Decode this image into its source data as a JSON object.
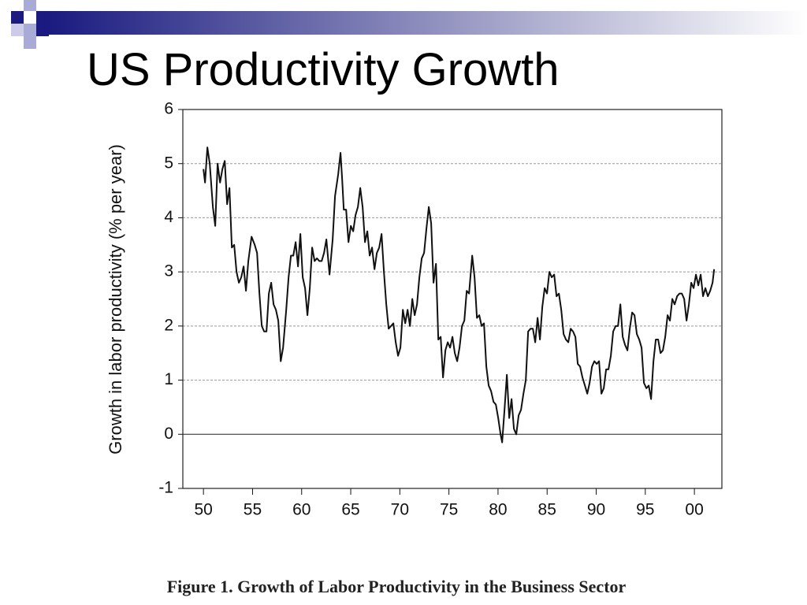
{
  "chart_data": {
    "type": "line",
    "title": "US Productivity Growth",
    "y_label": "Growth in labor productivity (% per year)",
    "caption": "Figure 1. Growth of Labor Productivity in the Business Sector",
    "xlim": [
      1947.9,
      2002.8
    ],
    "ylim": [
      -1,
      6
    ],
    "xticks": [
      {
        "value": 1950,
        "label": "50"
      },
      {
        "value": 1955,
        "label": "55"
      },
      {
        "value": 1960,
        "label": "60"
      },
      {
        "value": 1965,
        "label": "65"
      },
      {
        "value": 1970,
        "label": "70"
      },
      {
        "value": 1975,
        "label": "75"
      },
      {
        "value": 1980,
        "label": "80"
      },
      {
        "value": 1985,
        "label": "85"
      },
      {
        "value": 1990,
        "label": "90"
      },
      {
        "value": 1995,
        "label": "95"
      },
      {
        "value": 2000,
        "label": "00"
      }
    ],
    "yticks": [
      -1,
      0,
      1,
      2,
      3,
      4,
      5,
      6
    ],
    "grid": true,
    "color": "#111111",
    "x": [
      1950.0,
      1950.16,
      1950.4,
      1950.64,
      1950.96,
      1951.2,
      1951.44,
      1951.69,
      1951.93,
      1952.17,
      1952.41,
      1952.65,
      1952.89,
      1953.13,
      1953.37,
      1953.61,
      1953.85,
      1954.09,
      1954.33,
      1954.57,
      1954.9,
      1955.22,
      1955.46,
      1955.7,
      1955.94,
      1956.18,
      1956.42,
      1956.66,
      1956.9,
      1957.14,
      1957.38,
      1957.62,
      1957.87,
      1958.11,
      1958.43,
      1958.67,
      1958.91,
      1959.15,
      1959.39,
      1959.63,
      1959.87,
      1960.11,
      1960.35,
      1960.59,
      1960.83,
      1961.07,
      1961.32,
      1961.56,
      1961.8,
      1962.04,
      1962.28,
      1962.52,
      1962.84,
      1963.16,
      1963.4,
      1963.72,
      1963.96,
      1964.13,
      1964.29,
      1964.53,
      1964.77,
      1965.01,
      1965.25,
      1965.49,
      1965.73,
      1965.97,
      1966.21,
      1966.45,
      1966.69,
      1966.93,
      1967.17,
      1967.42,
      1967.66,
      1967.9,
      1968.14,
      1968.38,
      1968.62,
      1968.86,
      1969.1,
      1969.34,
      1969.58,
      1969.82,
      1970.06,
      1970.31,
      1970.55,
      1970.79,
      1971.03,
      1971.27,
      1971.51,
      1971.75,
      1971.99,
      1972.23,
      1972.47,
      1972.71,
      1972.95,
      1973.19,
      1973.43,
      1973.68,
      1973.92,
      1974.16,
      1974.4,
      1974.64,
      1974.88,
      1975.12,
      1975.36,
      1975.6,
      1975.84,
      1976.08,
      1976.33,
      1976.57,
      1976.81,
      1977.05,
      1977.37,
      1977.61,
      1977.85,
      1978.09,
      1978.33,
      1978.57,
      1978.81,
      1979.05,
      1979.29,
      1979.54,
      1979.78,
      1980.02,
      1980.26,
      1980.42,
      1980.66,
      1980.9,
      1981.14,
      1981.38,
      1981.62,
      1981.86,
      1982.1,
      1982.34,
      1982.59,
      1982.83,
      1983.07,
      1983.31,
      1983.55,
      1983.79,
      1984.03,
      1984.27,
      1984.51,
      1984.75,
      1984.99,
      1985.23,
      1985.47,
      1985.72,
      1985.96,
      1986.2,
      1986.44,
      1986.68,
      1986.92,
      1987.16,
      1987.4,
      1987.64,
      1987.88,
      1988.12,
      1988.36,
      1988.6,
      1988.85,
      1989.09,
      1989.33,
      1989.57,
      1989.81,
      1990.05,
      1990.29,
      1990.53,
      1990.77,
      1991.01,
      1991.25,
      1991.49,
      1991.73,
      1991.98,
      1992.22,
      1992.46,
      1992.7,
      1992.94,
      1993.18,
      1993.42,
      1993.66,
      1993.9,
      1994.14,
      1994.38,
      1994.62,
      1994.86,
      1995.11,
      1995.35,
      1995.59,
      1995.83,
      1996.07,
      1996.31,
      1996.55,
      1996.79,
      1997.03,
      1997.27,
      1997.51,
      1997.75,
      1997.99,
      1998.24,
      1998.48,
      1998.72,
      1998.96,
      1999.2,
      1999.44,
      1999.68,
      1999.92,
      2000.16,
      2000.4,
      2000.64,
      2000.88,
      2001.12,
      2001.37,
      2001.61,
      2001.85,
      2002.01
    ],
    "values": [
      4.9,
      4.65,
      5.3,
      5.0,
      4.2,
      3.85,
      5.0,
      4.65,
      4.9,
      5.05,
      4.25,
      4.55,
      3.45,
      3.5,
      3.0,
      2.8,
      2.9,
      3.1,
      2.65,
      3.2,
      3.65,
      3.5,
      3.35,
      2.6,
      2.0,
      1.9,
      1.9,
      2.6,
      2.8,
      2.4,
      2.3,
      2.1,
      1.35,
      1.6,
      2.3,
      2.9,
      3.3,
      3.3,
      3.55,
      3.1,
      3.7,
      2.9,
      2.7,
      2.2,
      2.7,
      3.45,
      3.2,
      3.25,
      3.2,
      3.2,
      3.35,
      3.6,
      2.95,
      3.6,
      4.4,
      4.8,
      5.2,
      4.7,
      4.15,
      4.15,
      3.55,
      3.85,
      3.75,
      4.05,
      4.2,
      4.55,
      4.2,
      3.55,
      3.75,
      3.3,
      3.45,
      3.05,
      3.35,
      3.45,
      3.7,
      3.0,
      2.4,
      1.95,
      2.0,
      2.05,
      1.7,
      1.45,
      1.6,
      2.3,
      2.05,
      2.3,
      2.0,
      2.5,
      2.2,
      2.4,
      2.9,
      3.25,
      3.35,
      3.8,
      4.2,
      3.9,
      2.8,
      3.15,
      1.75,
      1.8,
      1.05,
      1.55,
      1.7,
      1.6,
      1.8,
      1.5,
      1.35,
      1.6,
      2.0,
      2.1,
      2.65,
      2.6,
      3.3,
      2.9,
      2.15,
      2.2,
      2.0,
      2.05,
      1.25,
      0.9,
      0.8,
      0.6,
      0.55,
      0.3,
      0.0,
      -0.15,
      0.45,
      1.1,
      0.3,
      0.65,
      0.1,
      0.0,
      0.35,
      0.45,
      0.75,
      1.0,
      1.9,
      1.95,
      1.95,
      1.7,
      2.15,
      1.75,
      2.35,
      2.7,
      2.6,
      3.0,
      2.9,
      2.95,
      2.55,
      2.6,
      2.3,
      1.85,
      1.75,
      1.7,
      1.95,
      1.9,
      1.8,
      1.3,
      1.25,
      1.05,
      0.9,
      0.75,
      0.95,
      1.25,
      1.35,
      1.3,
      1.35,
      0.75,
      0.85,
      1.2,
      1.2,
      1.45,
      1.9,
      2.0,
      2.0,
      2.4,
      1.8,
      1.65,
      1.55,
      1.95,
      2.25,
      2.2,
      1.85,
      1.75,
      1.6,
      0.95,
      0.85,
      0.9,
      0.65,
      1.35,
      1.75,
      1.75,
      1.5,
      1.55,
      1.8,
      2.2,
      2.1,
      2.5,
      2.4,
      2.55,
      2.6,
      2.6,
      2.5,
      2.1,
      2.4,
      2.8,
      2.7,
      2.95,
      2.75,
      2.95,
      2.55,
      2.7,
      2.55,
      2.65,
      2.8,
      3.05
    ]
  }
}
